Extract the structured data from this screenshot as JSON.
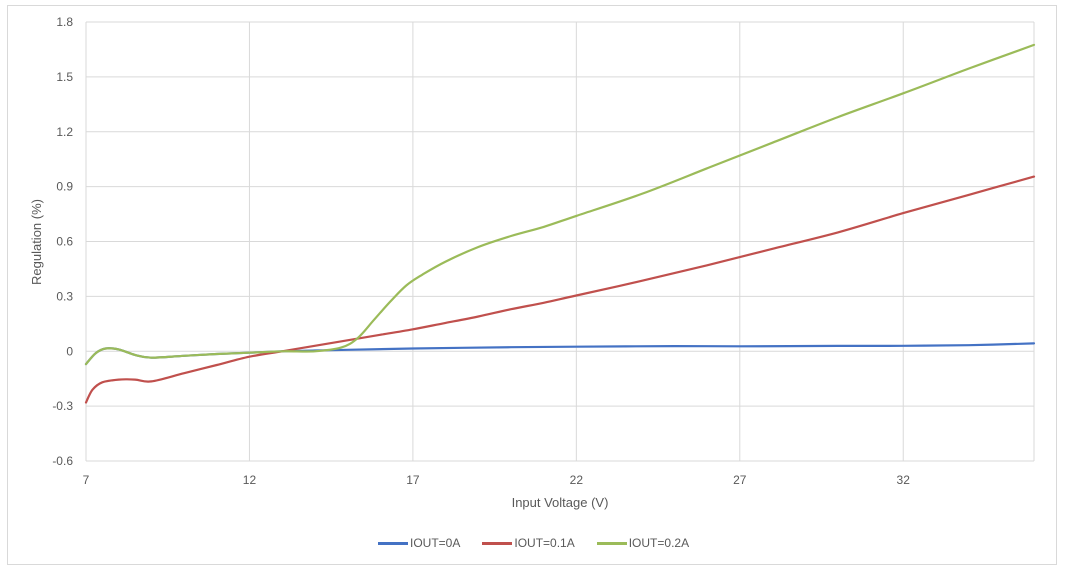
{
  "chart_data": {
    "type": "line",
    "title": "",
    "xlabel": "Input Voltage (V)",
    "ylabel": "Regulation (%)",
    "xlim": [
      7,
      36
    ],
    "ylim": [
      -0.6,
      1.8
    ],
    "x_ticks": [
      7,
      12,
      17,
      22,
      27,
      32
    ],
    "y_ticks": [
      -0.6,
      -0.3,
      0,
      0.3,
      0.6,
      0.9,
      1.2,
      1.5,
      1.8
    ],
    "y_tick_labels": [
      "-0.6",
      "-0.3",
      "0",
      "0.3",
      "0.6",
      "0.9",
      "1.2",
      "1.5",
      "1.8"
    ],
    "grid": true,
    "legend_position": "bottom",
    "series": [
      {
        "name": "IOUT=0A",
        "color": "#4472C4",
        "points": [
          [
            7,
            -0.07
          ],
          [
            7.3,
            -0.01
          ],
          [
            7.6,
            0.015
          ],
          [
            8.0,
            0.01
          ],
          [
            8.5,
            -0.02
          ],
          [
            9,
            -0.035
          ],
          [
            10,
            -0.025
          ],
          [
            11,
            -0.015
          ],
          [
            12,
            -0.008
          ],
          [
            13,
            0.0
          ],
          [
            14,
            0.004
          ],
          [
            15,
            0.008
          ],
          [
            17,
            0.015
          ],
          [
            20,
            0.022
          ],
          [
            22,
            0.025
          ],
          [
            25,
            0.028
          ],
          [
            27,
            0.027
          ],
          [
            30,
            0.029
          ],
          [
            32,
            0.03
          ],
          [
            34,
            0.033
          ],
          [
            36,
            0.043
          ]
        ]
      },
      {
        "name": "IOUT=0.1A",
        "color": "#C0504D",
        "points": [
          [
            7,
            -0.28
          ],
          [
            7.2,
            -0.21
          ],
          [
            7.5,
            -0.17
          ],
          [
            8.0,
            -0.155
          ],
          [
            8.5,
            -0.155
          ],
          [
            9,
            -0.165
          ],
          [
            10,
            -0.12
          ],
          [
            11,
            -0.075
          ],
          [
            12,
            -0.03
          ],
          [
            13,
            0.0
          ],
          [
            14,
            0.03
          ],
          [
            15,
            0.06
          ],
          [
            16,
            0.09
          ],
          [
            17,
            0.12
          ],
          [
            18,
            0.155
          ],
          [
            19,
            0.19
          ],
          [
            20,
            0.23
          ],
          [
            21,
            0.265
          ],
          [
            22,
            0.305
          ],
          [
            24,
            0.385
          ],
          [
            26,
            0.47
          ],
          [
            28,
            0.56
          ],
          [
            30,
            0.65
          ],
          [
            32,
            0.755
          ],
          [
            34,
            0.855
          ],
          [
            36,
            0.955
          ]
        ]
      },
      {
        "name": "IOUT=0.2A",
        "color": "#9BBB59",
        "points": [
          [
            7,
            -0.07
          ],
          [
            7.3,
            -0.01
          ],
          [
            7.6,
            0.015
          ],
          [
            8.0,
            0.01
          ],
          [
            8.5,
            -0.02
          ],
          [
            9,
            -0.035
          ],
          [
            10,
            -0.025
          ],
          [
            11,
            -0.015
          ],
          [
            12,
            -0.008
          ],
          [
            13,
            0.0
          ],
          [
            14,
            0.0
          ],
          [
            14.8,
            0.02
          ],
          [
            15.3,
            0.07
          ],
          [
            15.8,
            0.17
          ],
          [
            16.3,
            0.27
          ],
          [
            16.8,
            0.36
          ],
          [
            17.3,
            0.42
          ],
          [
            18,
            0.49
          ],
          [
            19,
            0.57
          ],
          [
            20,
            0.63
          ],
          [
            21,
            0.68
          ],
          [
            22,
            0.74
          ],
          [
            24,
            0.86
          ],
          [
            26,
            1.0
          ],
          [
            28,
            1.14
          ],
          [
            30,
            1.28
          ],
          [
            32,
            1.41
          ],
          [
            34,
            1.545
          ],
          [
            36,
            1.675
          ]
        ]
      }
    ]
  },
  "axes": {
    "x_title": "Input Voltage (V)",
    "y_title": "Regulation (%)"
  },
  "legend": {
    "items": [
      {
        "label": "IOUT=0A",
        "color": "#4472C4"
      },
      {
        "label": "IOUT=0.1A",
        "color": "#C0504D"
      },
      {
        "label": "IOUT=0.2A",
        "color": "#9BBB59"
      }
    ]
  }
}
